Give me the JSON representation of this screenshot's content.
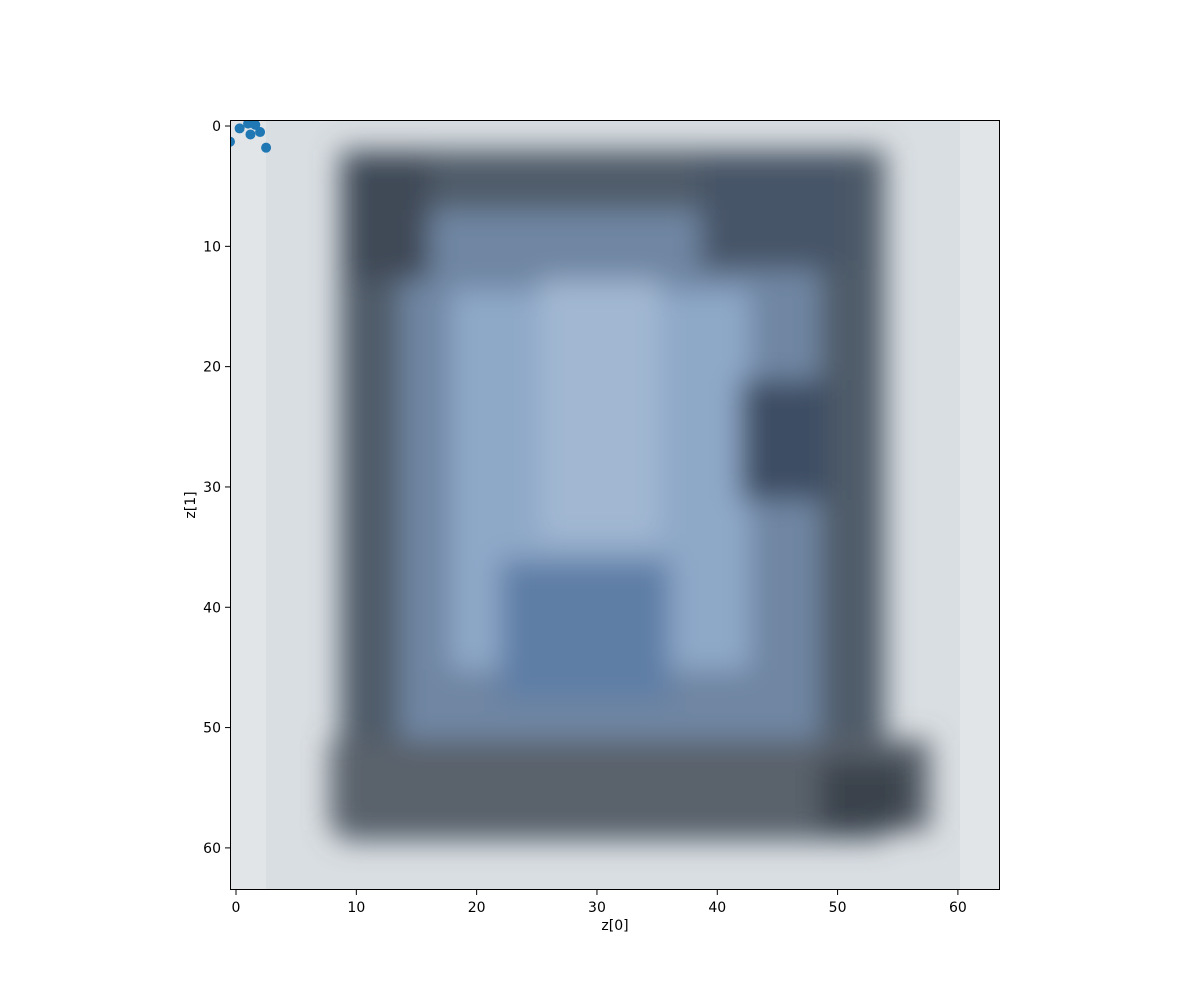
{
  "chart_data": {
    "type": "scatter",
    "title": "",
    "xlabel": "z[0]",
    "ylabel": "z[1]",
    "xlim": [
      -0.5,
      63.5
    ],
    "ylim": [
      63.5,
      -0.5
    ],
    "y_inverted": true,
    "grid": false,
    "background": "blurred 64x64 image shown under the points: a light grey border and a dark grey-blue rectangular frame around a lighter blue centre",
    "xticks": [
      0,
      10,
      20,
      30,
      40,
      50,
      60
    ],
    "yticks": [
      0,
      10,
      20,
      30,
      40,
      50,
      60
    ],
    "xtick_labels": [
      "0",
      "10",
      "20",
      "30",
      "40",
      "50",
      "60"
    ],
    "ytick_labels": [
      "0",
      "10",
      "20",
      "30",
      "40",
      "50",
      "60"
    ],
    "series": [
      {
        "color": "#1f77b4",
        "x": [
          -0.5,
          0.3,
          1.0,
          1.2,
          1.6,
          2.0,
          2.5
        ],
        "y": [
          1.3,
          0.2,
          -0.2,
          0.7,
          -0.1,
          0.5,
          1.8
        ]
      }
    ]
  }
}
